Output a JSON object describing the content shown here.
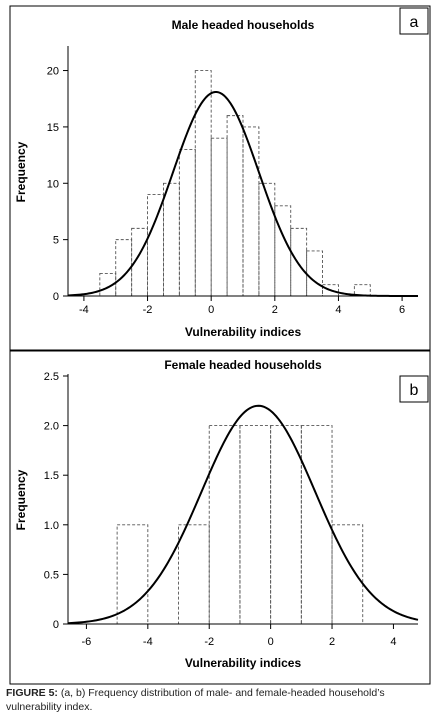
{
  "caption": {
    "label": "FIGURE 5:",
    "text": "(a, b) Frequency distribution of male- and female-headed household’s vulnerability index."
  },
  "chart_data": [
    {
      "type": "bar",
      "panel_label": "a",
      "title": "Male headed households",
      "xlabel": "Vulnerability indices",
      "ylabel": "Frequency",
      "xlim": [
        -4.5,
        6.5
      ],
      "ylim": [
        0,
        22
      ],
      "xticks": [
        -4,
        -2,
        0,
        2,
        4,
        6
      ],
      "yticks": [
        0,
        5,
        10,
        15,
        20
      ],
      "ytick_labels": [
        "0",
        "5",
        "10",
        "15",
        "20"
      ],
      "bin_width": 0.5,
      "bins": [
        {
          "start": -3.5,
          "value": 2
        },
        {
          "start": -3.0,
          "value": 5
        },
        {
          "start": -2.5,
          "value": 6
        },
        {
          "start": -2.0,
          "value": 9
        },
        {
          "start": -1.5,
          "value": 10
        },
        {
          "start": -1.0,
          "value": 13
        },
        {
          "start": -0.5,
          "value": 20
        },
        {
          "start": 0.0,
          "value": 14
        },
        {
          "start": 0.5,
          "value": 16
        },
        {
          "start": 1.0,
          "value": 15
        },
        {
          "start": 1.5,
          "value": 10
        },
        {
          "start": 2.0,
          "value": 8
        },
        {
          "start": 2.5,
          "value": 6
        },
        {
          "start": 3.0,
          "value": 4
        },
        {
          "start": 3.5,
          "value": 1
        },
        {
          "start": 4.5,
          "value": 1
        }
      ],
      "normal_curve": {
        "mean": 0.15,
        "sd": 1.35,
        "peak": 18.1
      },
      "grid": false
    },
    {
      "type": "bar",
      "panel_label": "b",
      "title": "Female headed households",
      "xlabel": "Vulnerability indices",
      "ylabel": "Frequency",
      "xlim": [
        -6.6,
        4.8
      ],
      "ylim": [
        0,
        2.5
      ],
      "xticks": [
        -6,
        -4,
        -2,
        0,
        2,
        4
      ],
      "yticks": [
        0,
        0.5,
        1,
        1.5,
        2,
        2.5
      ],
      "ytick_labels": [
        "0",
        "0.5",
        "1.0",
        "1.5",
        "2.0",
        "2.5"
      ],
      "bin_width": 1,
      "bins": [
        {
          "start": -5,
          "value": 1
        },
        {
          "start": -3,
          "value": 1
        },
        {
          "start": -2,
          "value": 2
        },
        {
          "start": -1,
          "value": 2
        },
        {
          "start": 0,
          "value": 2
        },
        {
          "start": 1,
          "value": 2
        },
        {
          "start": 2,
          "value": 1
        }
      ],
      "normal_curve": {
        "mean": -0.4,
        "sd": 1.85,
        "peak": 2.2
      },
      "grid": false
    }
  ]
}
